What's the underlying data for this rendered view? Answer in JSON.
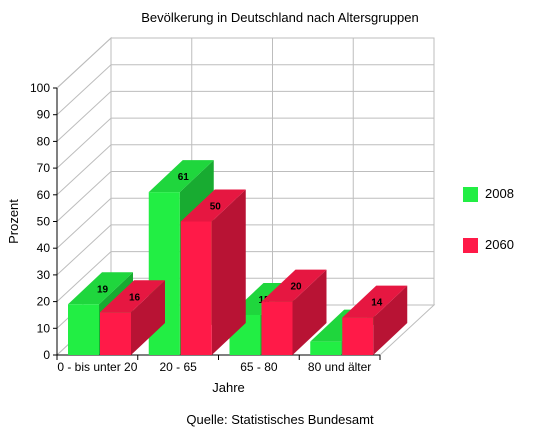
{
  "chart_data": {
    "type": "bar",
    "title": "Bevölkerung in Deutschland nach Altersgruppen",
    "xlabel": "Jahre",
    "ylabel": "Prozent",
    "source": "Quelle: Statistisches Bundesamt",
    "categories": [
      "0 - bis unter 20",
      "20 - 65",
      "65 - 80",
      "80 und älter"
    ],
    "series": [
      {
        "name": "2008",
        "color": "#22ee44",
        "values": [
          19,
          61,
          15,
          5
        ]
      },
      {
        "name": "2060",
        "color": "#ff1a48",
        "values": [
          16,
          50,
          20,
          14
        ]
      }
    ],
    "ylim": [
      0,
      100
    ],
    "yticks": [
      0,
      10,
      20,
      30,
      40,
      50,
      60,
      70,
      80,
      90,
      100
    ],
    "grid": true,
    "legend_position": "right",
    "style": "3d"
  }
}
